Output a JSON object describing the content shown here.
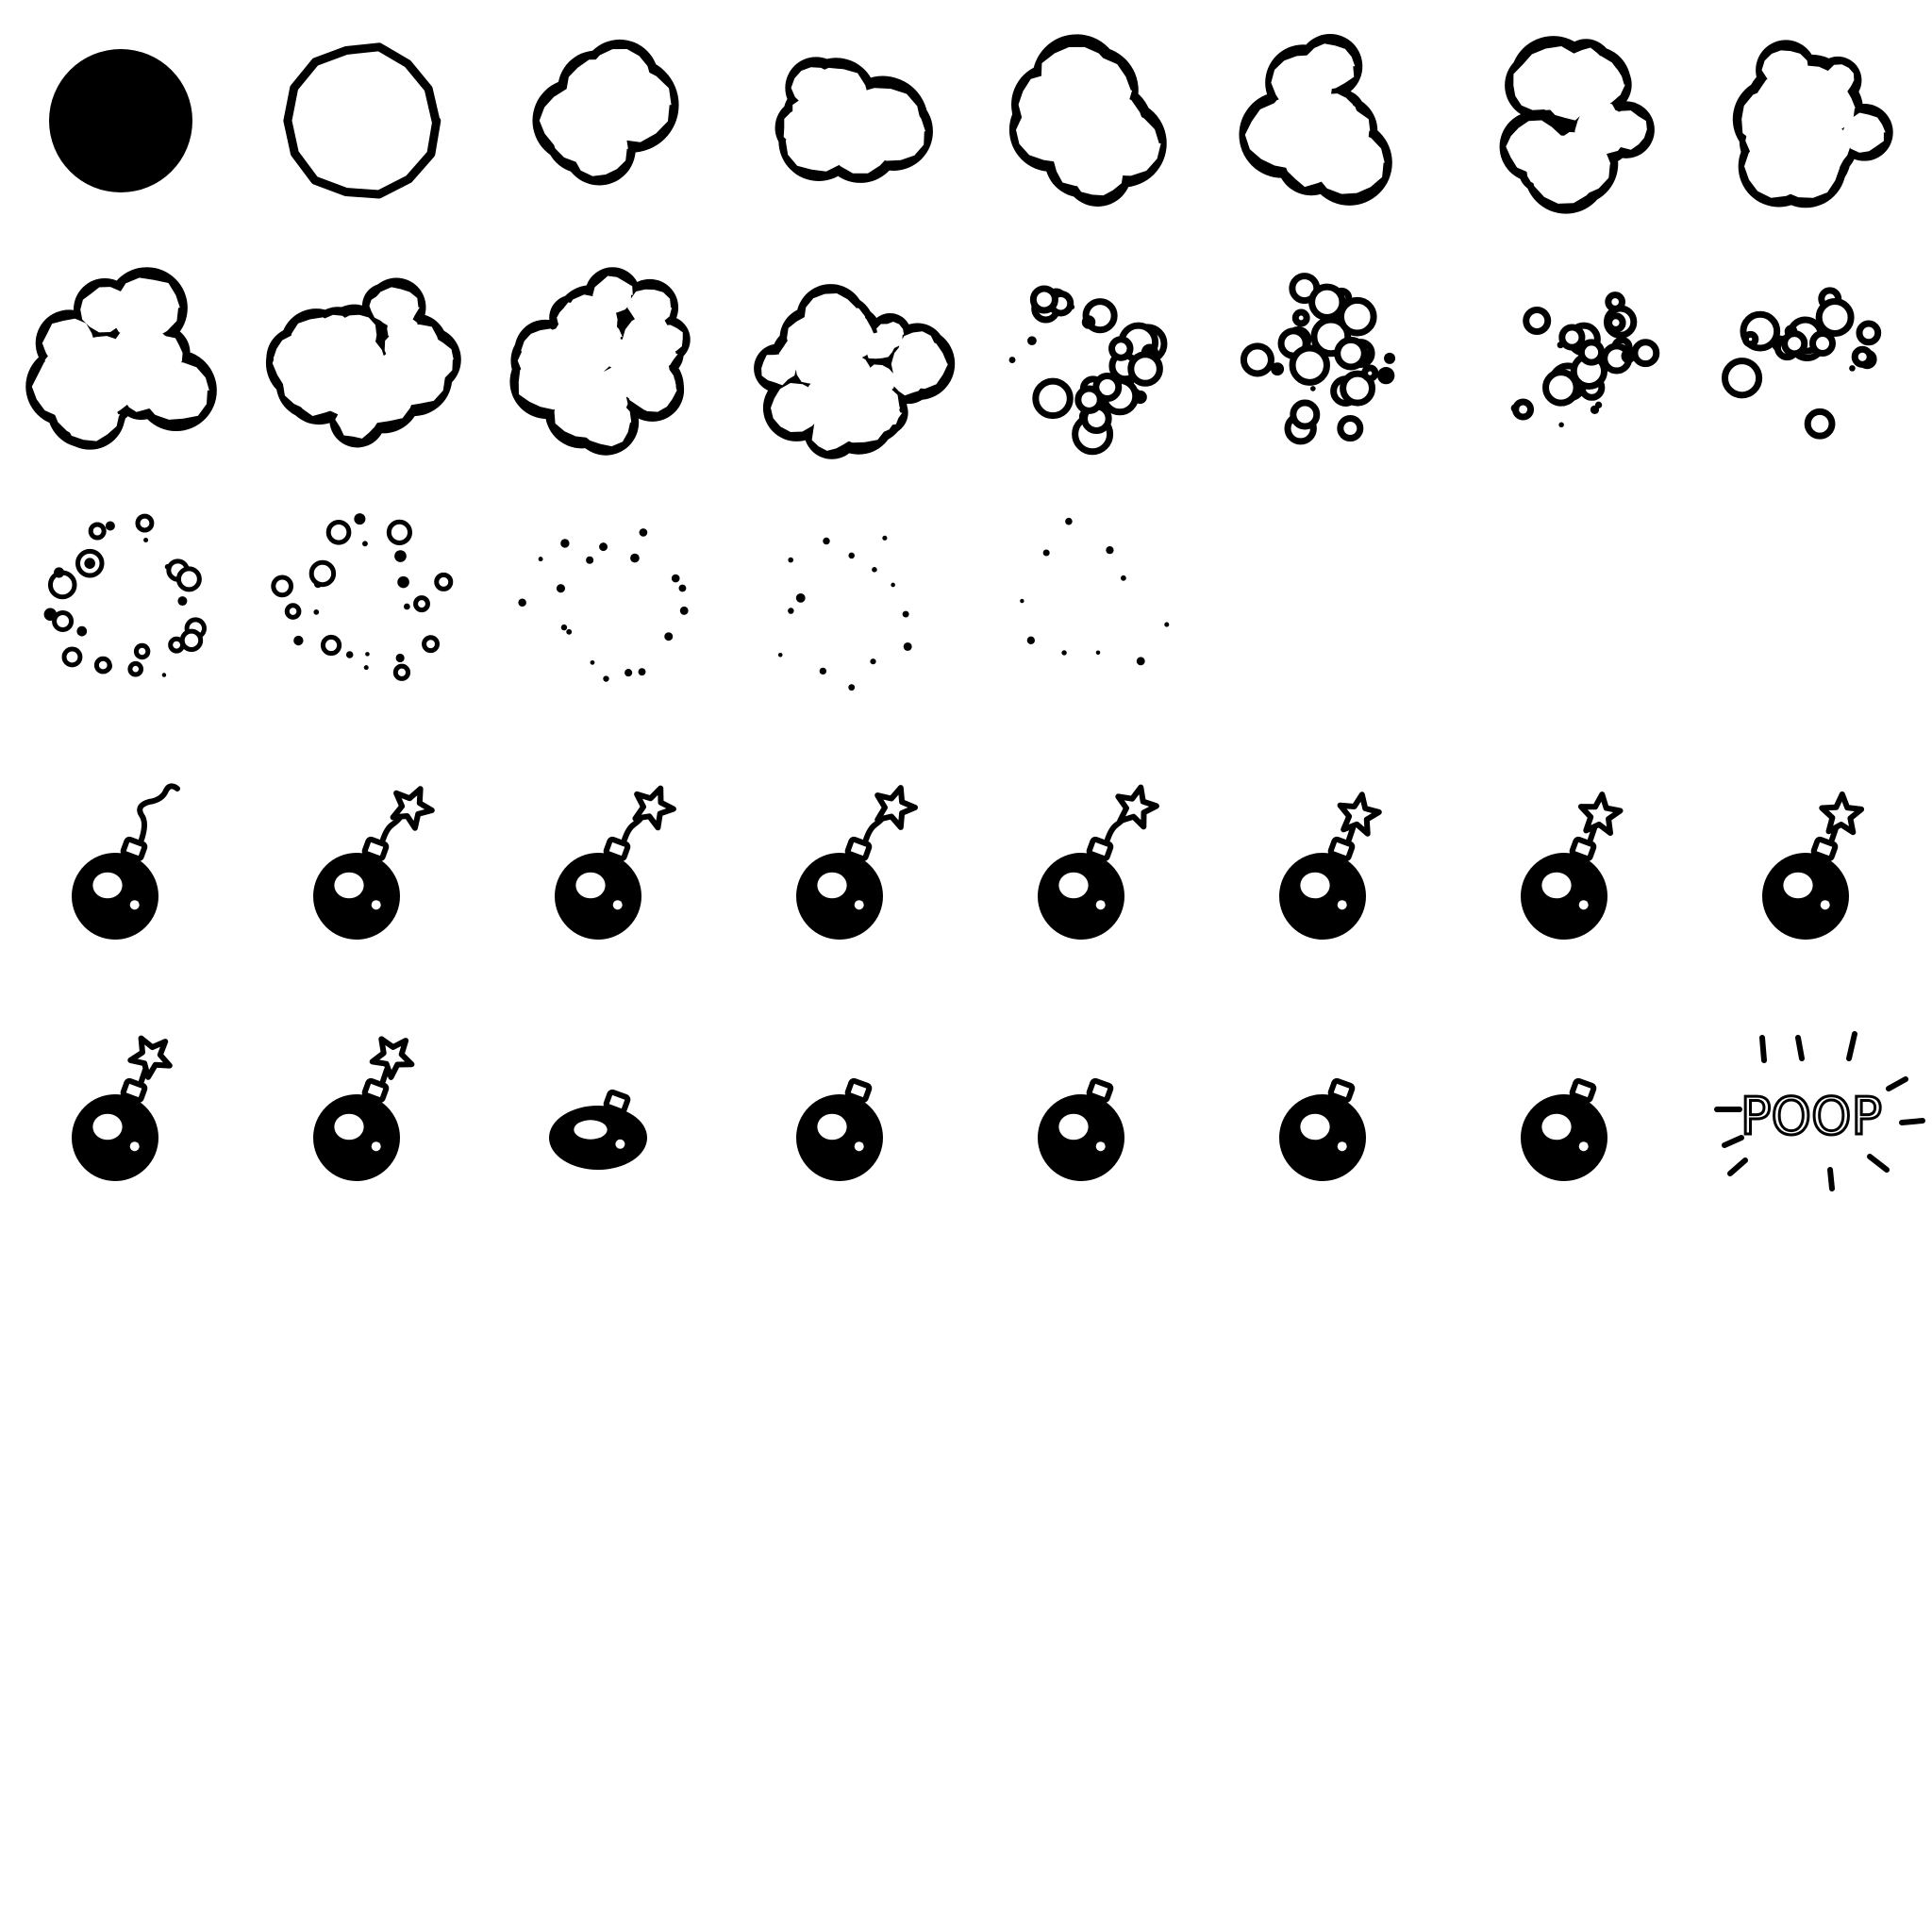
{
  "sheet": {
    "background": "#ffffff",
    "ink": "#000000",
    "columns": 8,
    "rows_used": 5,
    "sections": [
      {
        "name": "explosion-sequence",
        "frame_count": 21
      },
      {
        "name": "bomb-fuse-sequence",
        "frame_count": 15
      },
      {
        "name": "poop-text",
        "frame_count": 1
      }
    ],
    "frames": [
      {
        "id": 1,
        "kind": "puff",
        "stage": "solid-ball"
      },
      {
        "id": 2,
        "kind": "puff",
        "stage": "outline-ball"
      },
      {
        "id": 3,
        "kind": "puff",
        "stage": "cloud",
        "bubbles": 7
      },
      {
        "id": 4,
        "kind": "puff",
        "stage": "cloud",
        "bubbles": 11
      },
      {
        "id": 5,
        "kind": "puff",
        "stage": "cloud",
        "bubbles": 14
      },
      {
        "id": 6,
        "kind": "puff",
        "stage": "cloud",
        "bubbles": 16
      },
      {
        "id": 7,
        "kind": "puff",
        "stage": "cloud",
        "bubbles": 18
      },
      {
        "id": 8,
        "kind": "puff",
        "stage": "cloud",
        "bubbles": 20
      },
      {
        "id": 9,
        "kind": "puff",
        "stage": "cloud",
        "bubbles": 22
      },
      {
        "id": 10,
        "kind": "puff",
        "stage": "cloud",
        "bubbles": 26
      },
      {
        "id": 11,
        "kind": "puff",
        "stage": "cloud",
        "bubbles": 30
      },
      {
        "id": 12,
        "kind": "puff",
        "stage": "cloud",
        "bubbles": 32
      },
      {
        "id": 13,
        "kind": "puff",
        "stage": "breaking",
        "bubbles": 26
      },
      {
        "id": 14,
        "kind": "puff",
        "stage": "breaking",
        "bubbles": 24
      },
      {
        "id": 15,
        "kind": "puff",
        "stage": "breaking",
        "bubbles": 22
      },
      {
        "id": 16,
        "kind": "puff",
        "stage": "breaking",
        "bubbles": 20
      },
      {
        "id": 17,
        "kind": "puff",
        "stage": "scatter",
        "bubbles": 24
      },
      {
        "id": 18,
        "kind": "puff",
        "stage": "scatter",
        "bubbles": 22
      },
      {
        "id": 19,
        "kind": "puff",
        "stage": "scatter",
        "bubbles": 18
      },
      {
        "id": 20,
        "kind": "puff",
        "stage": "scatter",
        "bubbles": 14
      },
      {
        "id": 21,
        "kind": "puff",
        "stage": "scatter",
        "bubbles": 10
      },
      {
        "id": 22,
        "kind": "bomb",
        "fuse": "curl",
        "spark": "none"
      },
      {
        "id": 23,
        "kind": "bomb",
        "fuse": "short",
        "spark": "star"
      },
      {
        "id": 24,
        "kind": "bomb",
        "fuse": "short",
        "spark": "star"
      },
      {
        "id": 25,
        "kind": "bomb",
        "fuse": "short",
        "spark": "star"
      },
      {
        "id": 26,
        "kind": "bomb",
        "fuse": "short",
        "spark": "star"
      },
      {
        "id": 27,
        "kind": "bomb",
        "fuse": "stub",
        "spark": "star"
      },
      {
        "id": 28,
        "kind": "bomb",
        "fuse": "stub",
        "spark": "star"
      },
      {
        "id": 29,
        "kind": "bomb",
        "fuse": "stub",
        "spark": "star"
      },
      {
        "id": 30,
        "kind": "bomb",
        "fuse": "stub",
        "spark": "star"
      },
      {
        "id": 31,
        "kind": "bomb",
        "fuse": "stub",
        "spark": "star"
      },
      {
        "id": 32,
        "kind": "bomb",
        "fuse": "none",
        "spark": "none",
        "shape": "squashed"
      },
      {
        "id": 33,
        "kind": "bomb",
        "fuse": "none",
        "spark": "none",
        "shape": "round"
      },
      {
        "id": 34,
        "kind": "bomb",
        "fuse": "none",
        "spark": "none",
        "shape": "round"
      },
      {
        "id": 35,
        "kind": "bomb",
        "fuse": "none",
        "spark": "none",
        "shape": "round"
      },
      {
        "id": 36,
        "kind": "bomb",
        "fuse": "none",
        "spark": "none",
        "shape": "round"
      },
      {
        "id": 37,
        "kind": "poop",
        "text": "POOP"
      }
    ]
  }
}
